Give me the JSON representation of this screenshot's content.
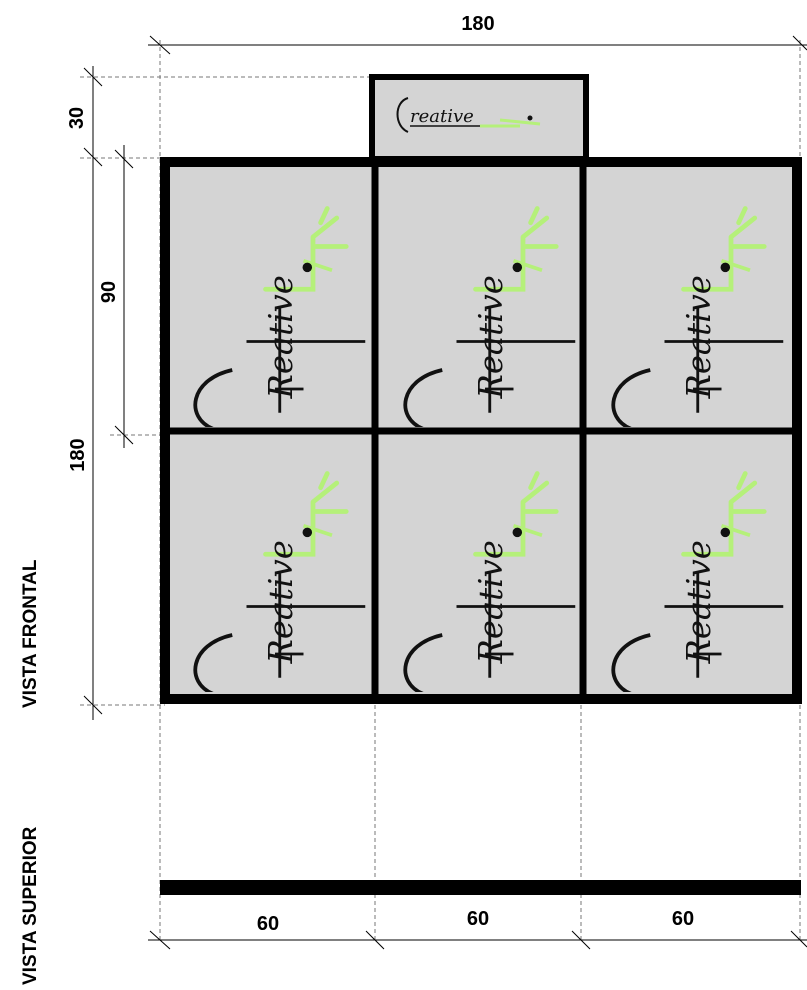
{
  "dimensions": {
    "top_width": "180",
    "header_height": "30",
    "module_height": "90",
    "total_height": "180",
    "bottom_widths": [
      "60",
      "60",
      "60"
    ]
  },
  "views": {
    "front": "VISTA FRONTAL",
    "top": "VISTA SUPERIOR"
  },
  "logo": {
    "name": "CreativeLine",
    "accent_color": "#b5f07a",
    "ink_color": "#111111"
  },
  "colors": {
    "panel_fill": "#d4d4d4",
    "frame": "#000000",
    "guide": "#777777"
  }
}
